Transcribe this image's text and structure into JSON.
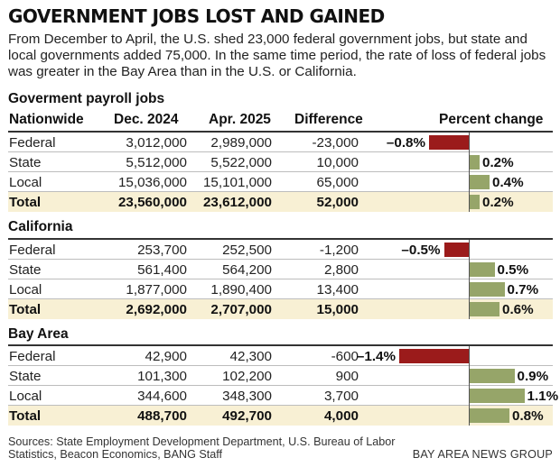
{
  "title": "GOVERNMENT JOBS LOST AND GAINED",
  "subtitle": "From December to April, the U.S. shed 23,000 federal government jobs, but state and local governments added 75,000. In the same time period, the rate of loss of federal jobs was greater in the Bay Area than in the U.S. or California.",
  "subheading": "Goverment payroll jobs",
  "headers": {
    "region": "Nationwide",
    "dec": "Dec. 2024",
    "apr": "Apr. 2025",
    "diff": "Difference",
    "pct": "Percent change"
  },
  "chart_data": {
    "type": "table",
    "sections": [
      {
        "name": "Nationwide",
        "rows": [
          {
            "label": "Federal",
            "dec": "3,012,000",
            "apr": "2,989,000",
            "diff": "-23,000",
            "pct": -0.8,
            "pct_label": "–0.8%"
          },
          {
            "label": "State",
            "dec": "5,512,000",
            "apr": "5,522,000",
            "diff": "10,000",
            "pct": 0.2,
            "pct_label": "0.2%"
          },
          {
            "label": "Local",
            "dec": "15,036,000",
            "apr": "15,101,000",
            "diff": "65,000",
            "pct": 0.4,
            "pct_label": "0.4%"
          },
          {
            "label": "Total",
            "dec": "23,560,000",
            "apr": "23,612,000",
            "diff": "52,000",
            "pct": 0.2,
            "pct_label": "0.2%",
            "total": true
          }
        ]
      },
      {
        "name": "California",
        "rows": [
          {
            "label": "Federal",
            "dec": "253,700",
            "apr": "252,500",
            "diff": "-1,200",
            "pct": -0.5,
            "pct_label": "–0.5%"
          },
          {
            "label": "State",
            "dec": "561,400",
            "apr": "564,200",
            "diff": "2,800",
            "pct": 0.5,
            "pct_label": "0.5%"
          },
          {
            "label": "Local",
            "dec": "1,877,000",
            "apr": "1,890,400",
            "diff": "13,400",
            "pct": 0.7,
            "pct_label": "0.7%"
          },
          {
            "label": "Total",
            "dec": "2,692,000",
            "apr": "2,707,000",
            "diff": "15,000",
            "pct": 0.6,
            "pct_label": "0.6%",
            "total": true
          }
        ]
      },
      {
        "name": "Bay Area",
        "rows": [
          {
            "label": "Federal",
            "dec": "42,900",
            "apr": "42,300",
            "diff": "-600",
            "pct": -1.4,
            "pct_label": "–1.4%"
          },
          {
            "label": "State",
            "dec": "101,300",
            "apr": "102,200",
            "diff": "900",
            "pct": 0.9,
            "pct_label": "0.9%"
          },
          {
            "label": "Local",
            "dec": "344,600",
            "apr": "348,300",
            "diff": "3,700",
            "pct": 1.1,
            "pct_label": "1.1%"
          },
          {
            "label": "Total",
            "dec": "488,700",
            "apr": "492,700",
            "diff": "4,000",
            "pct": 0.8,
            "pct_label": "0.8%",
            "total": true
          }
        ]
      }
    ],
    "colors": {
      "negative": "#9b1b1b",
      "positive": "#96a569",
      "total_row": "#f8f0d4"
    }
  },
  "sources": "Sources: State Employment Development Department, U.S. Bureau of Labor Statistics, Beacon Economics, BANG Staff",
  "credit": "BAY AREA NEWS GROUP"
}
